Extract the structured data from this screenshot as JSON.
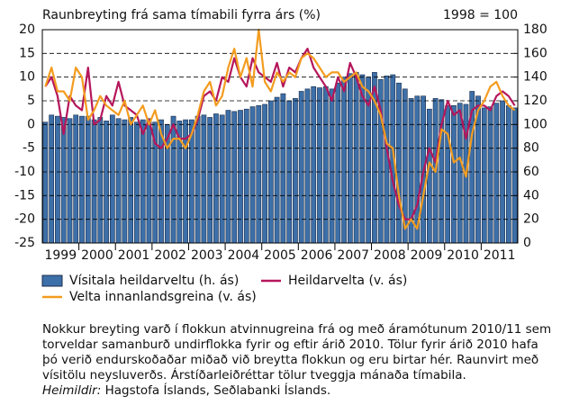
{
  "chart_data": {
    "type": "combo",
    "title": "Raunbreyting frá sama tímabili fyrra árs (%)",
    "annotation": "1998 = 100",
    "categories": [
      null,
      null,
      "1999",
      null,
      null,
      null,
      null,
      null,
      "2000",
      null,
      null,
      null,
      null,
      null,
      "2001",
      null,
      null,
      null,
      null,
      null,
      "2002",
      null,
      null,
      null,
      null,
      null,
      "2003",
      null,
      null,
      null,
      null,
      null,
      "2004",
      null,
      null,
      null,
      null,
      null,
      "2005",
      null,
      null,
      null,
      null,
      null,
      "2006",
      null,
      null,
      null,
      null,
      null,
      "2007",
      null,
      null,
      null,
      null,
      null,
      "2008",
      null,
      null,
      null,
      null,
      null,
      "2009",
      null,
      null,
      null,
      null,
      null,
      "2010",
      null,
      null,
      null,
      null,
      null,
      "2011",
      null,
      null,
      null
    ],
    "series": [
      {
        "name": "Vísitala heildarveltu (h. ás)",
        "type": "bar",
        "axis": "y2",
        "color": "#3d6fa8",
        "values": [
          102,
          108,
          107,
          106,
          105,
          108,
          107,
          107,
          104,
          106,
          103,
          108,
          105,
          104,
          106,
          102,
          104,
          105,
          102,
          104,
          100,
          107,
          103,
          104,
          104,
          107,
          108,
          106,
          109,
          108,
          112,
          111,
          112,
          113,
          115,
          116,
          117,
          120,
          123,
          126,
          120,
          122,
          128,
          130,
          132,
          131,
          132,
          130,
          135,
          140,
          143,
          144,
          142,
          140,
          144,
          138,
          141,
          142,
          135,
          130,
          122,
          124,
          124,
          113,
          122,
          121,
          116,
          116,
          118,
          117,
          128,
          124,
          114,
          115,
          118,
          120,
          116,
          114
        ]
      },
      {
        "name": "Heildarvelta (v. ás)",
        "type": "line",
        "axis": "y",
        "color": "#b5165b",
        "values": [
          8,
          10,
          6,
          -2,
          6,
          4,
          3,
          12,
          0,
          1,
          6,
          4,
          9,
          4,
          3,
          2,
          -2,
          1,
          -4,
          -5,
          -3,
          0,
          -3,
          -3,
          -2,
          1,
          6,
          7,
          5,
          10,
          9,
          14,
          10,
          8,
          14,
          11,
          10,
          9,
          13,
          8,
          12,
          11,
          14,
          16,
          12,
          10,
          8,
          5,
          10,
          7,
          13,
          10,
          6,
          4,
          8,
          3,
          -5,
          -12,
          -17,
          -20,
          -20,
          -17,
          -10,
          -5,
          -8,
          0,
          5,
          2,
          3,
          -3,
          3,
          4,
          4,
          3,
          6,
          7,
          6,
          4
        ]
      },
      {
        "name": "Velta innanlandsgreina (v. ás)",
        "type": "line",
        "axis": "y",
        "color": "#f39c1f",
        "values": [
          8,
          12,
          7,
          7,
          5,
          12,
          10,
          1,
          3,
          6,
          4,
          3,
          2,
          5,
          0,
          2,
          4,
          0,
          3,
          -2,
          -5,
          -3,
          -3,
          -5,
          -2,
          2,
          7,
          9,
          4,
          6,
          12,
          16,
          10,
          14,
          8,
          20,
          9,
          7,
          11,
          9,
          11,
          10,
          14,
          15,
          14,
          12,
          10,
          11,
          11,
          9,
          10,
          11,
          8,
          7,
          5,
          2,
          -4,
          -5,
          -15,
          -22,
          -20,
          -22,
          -15,
          -8,
          -10,
          -1,
          -2,
          -8,
          -7,
          -11,
          -2,
          3,
          5,
          8,
          9,
          6,
          4,
          3
        ]
      }
    ],
    "ylim": [
      -25,
      20
    ],
    "yticks": [
      -25,
      -20,
      -15,
      -10,
      -5,
      0,
      5,
      10,
      15,
      20
    ],
    "y2lim": [
      0,
      180
    ],
    "y2ticks": [
      0,
      20,
      40,
      60,
      80,
      100,
      120,
      140,
      160,
      180
    ],
    "grid": true,
    "note": "Nokkur breyting varð í flokkun atvinnugreina frá og með áramótunum 2010/11 sem torveldar samanburð undirflokka fyrir og eftir árið 2010. Tölur fyrir árið 2010 hafa þó verið endurskoðaðar miðað við breytta flokkun og eru birtar hér. Raunvirt með vísitölu neysluverðs. Árstíðarleiðréttar tölur tveggja mánaða tímabila.",
    "source_label": "Heimildir:",
    "source": "Hagstofa Íslands, Seðlabanki Íslands."
  }
}
